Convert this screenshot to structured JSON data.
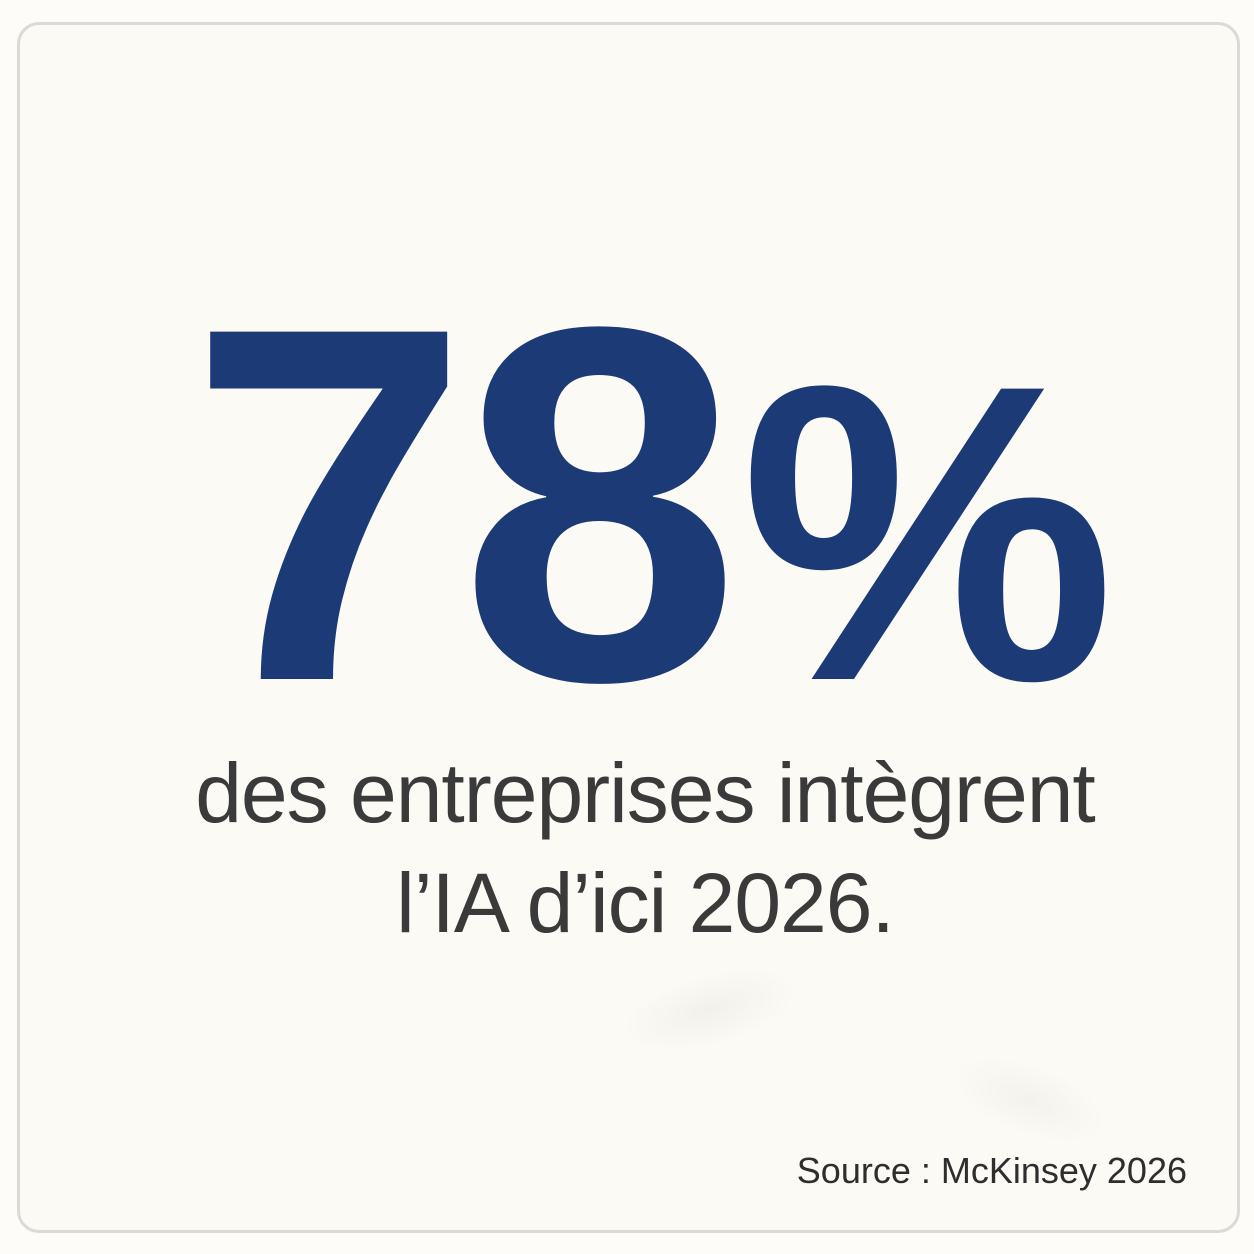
{
  "headline": {
    "value": "78",
    "percent_sign": "%"
  },
  "subtitle": {
    "line1": "des entreprises intègrent",
    "line2": "l’IA d’ici 2026."
  },
  "source": {
    "label": "Source : McKinsey 2026"
  },
  "colors": {
    "accent_navy": "#1C3A76",
    "subtitle_grey": "#3A3A3A",
    "source_grey": "#2E2E2E",
    "card_background": "#FBFAF5",
    "page_background": "#FDFCF8",
    "card_border": "#DBDAD6"
  }
}
